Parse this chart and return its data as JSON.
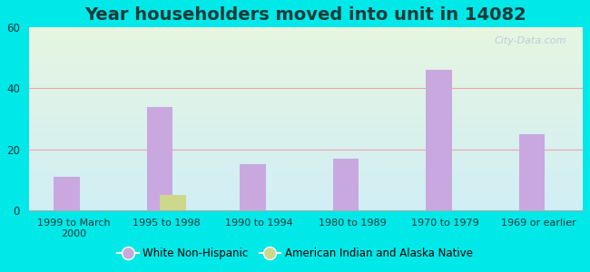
{
  "title": "Year householders moved into unit in 14082",
  "categories": [
    "1999 to March\n2000",
    "1995 to 1998",
    "1990 to 1994",
    "1980 to 1989",
    "1970 to 1979",
    "1969 or earlier"
  ],
  "white_non_hispanic": [
    11,
    34,
    15,
    17,
    46,
    25
  ],
  "american_indian": [
    0,
    5,
    0,
    0,
    0,
    0
  ],
  "white_color": "#c9a8e0",
  "indian_color": "#cdd88a",
  "background_outer": "#00e8e8",
  "background_inner_top": "#e6f5e0",
  "background_inner_bottom": "#d0eef5",
  "grid_color": "#f0a0b0",
  "ylim": [
    0,
    60
  ],
  "yticks": [
    0,
    20,
    40,
    60
  ],
  "bar_width": 0.28,
  "title_fontsize": 14,
  "title_color": "#1a3a3a",
  "tick_color": "#1a3a3a",
  "legend_labels": [
    "White Non-Hispanic",
    "American Indian and Alaska Native"
  ]
}
